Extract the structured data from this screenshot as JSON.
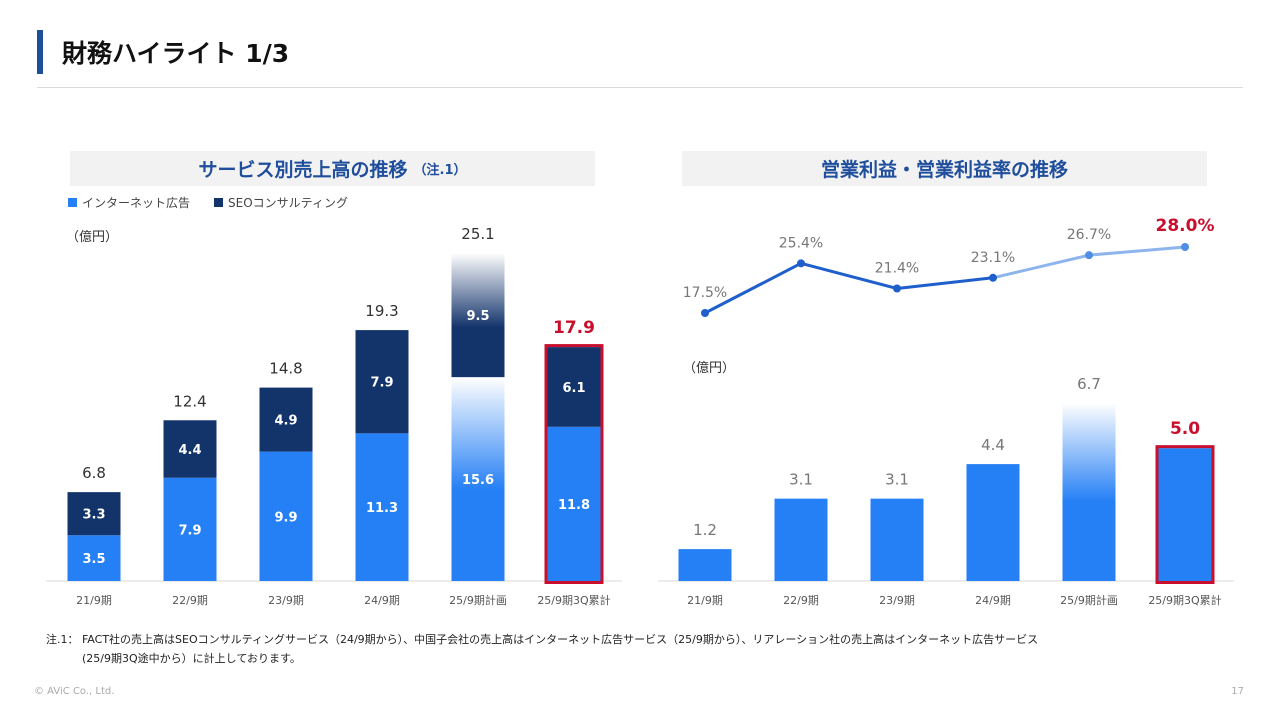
{
  "header": {
    "title": "財務ハイライト 1/3"
  },
  "left_panel": {
    "title": "サービス別売上高の推移",
    "title_note": "（注.1）",
    "legend": [
      {
        "label": "インターネット広告",
        "color": "#2680f5"
      },
      {
        "label": "SEOコンサルティング",
        "color": "#13336b"
      }
    ],
    "unit": "（億円）"
  },
  "right_panel": {
    "title": "営業利益・営業利益率の推移",
    "unit": "（億円）"
  },
  "chart_data": [
    {
      "type": "bar",
      "stacked": true,
      "title": "サービス別売上高の推移",
      "categories": [
        "21/9期",
        "22/9期",
        "23/9期",
        "24/9期",
        "25/9期計画",
        "25/9期3Q累計"
      ],
      "series": [
        {
          "name": "インターネット広告",
          "values": [
            3.5,
            7.9,
            9.9,
            11.3,
            15.6,
            11.8
          ],
          "color": "#2680f5"
        },
        {
          "name": "SEOコンサルティング",
          "values": [
            3.3,
            4.4,
            4.9,
            7.9,
            9.5,
            6.1
          ],
          "color": "#13336b"
        }
      ],
      "totals": [
        "6.8",
        "12.4",
        "14.8",
        "19.3",
        "25.1",
        "17.9"
      ],
      "ylabel": "（億円）",
      "ylim": [
        0,
        25.1
      ],
      "highlight_index": 5,
      "highlight_color": "#c8102e"
    },
    {
      "type": "line",
      "title": "営業利益・営業利益率の推移",
      "categories": [
        "21/9期",
        "22/9期",
        "23/9期",
        "24/9期",
        "25/9期計画",
        "25/9期3Q累計"
      ],
      "values": [
        17.5,
        25.4,
        21.4,
        23.1,
        26.7,
        28.0
      ],
      "labels": [
        "17.5%",
        "25.4%",
        "21.4%",
        "23.1%",
        "26.7%",
        "28.0%"
      ],
      "ylim": [
        17.5,
        28.0
      ],
      "color": "#1f5fcc",
      "highlight_index": 5
    },
    {
      "type": "bar",
      "title": "営業利益",
      "categories": [
        "21/9期",
        "22/9期",
        "23/9期",
        "24/9期",
        "25/9期計画",
        "25/9期3Q累計"
      ],
      "values": [
        1.2,
        3.1,
        3.1,
        4.4,
        6.7,
        5.0
      ],
      "labels": [
        "1.2",
        "3.1",
        "3.1",
        "4.4",
        "6.7",
        "5.0"
      ],
      "ylabel": "（億円）",
      "ylim": [
        0,
        6.7
      ],
      "color": "#2680f5",
      "highlight_index": 5
    }
  ],
  "footnote": {
    "line1": "注.1： FACT社の売上高はSEOコンサルティングサービス（24/9期から）、中国子会社の売上高はインターネット広告サービス（25/9期から）、リアレーション社の売上高はインターネット広告サービス",
    "line2": "(25/9期3Q途中から）に計上しております。"
  },
  "footer": {
    "copyright": "© AViC Co., Ltd.",
    "page": "17"
  }
}
